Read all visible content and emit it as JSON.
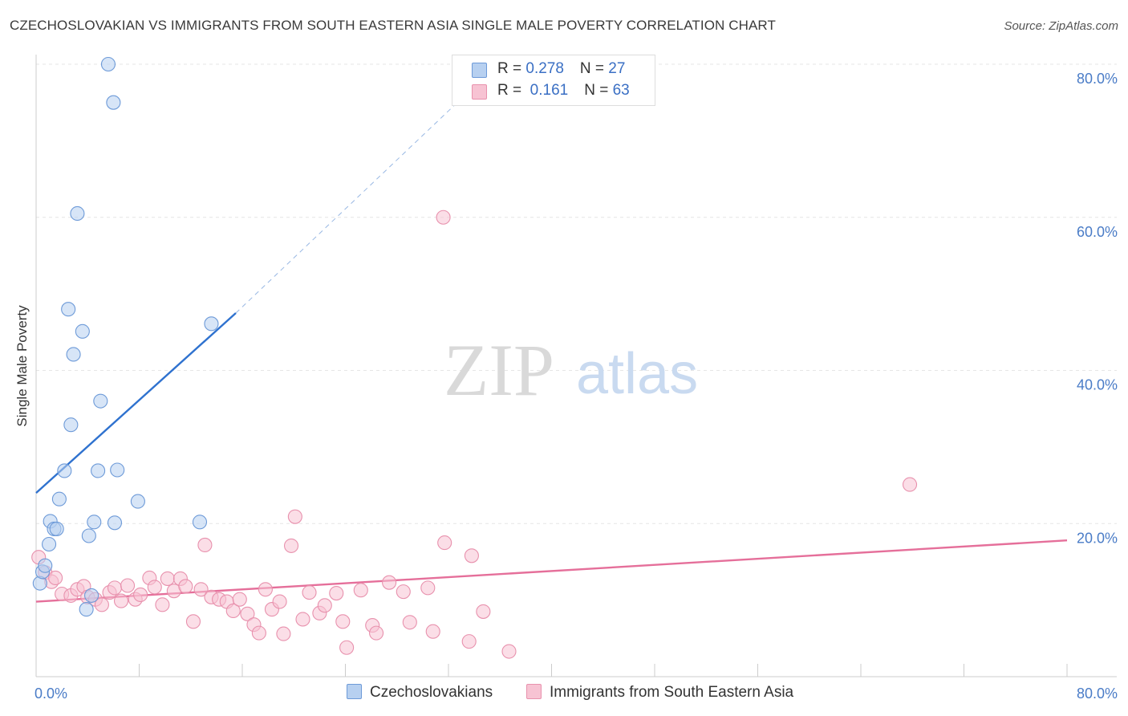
{
  "title": "CZECHOSLOVAKIAN VS IMMIGRANTS FROM SOUTH EASTERN ASIA SINGLE MALE POVERTY CORRELATION CHART",
  "source": "Source: ZipAtlas.com",
  "watermark": {
    "zip": "ZIP",
    "atlas": "atlas"
  },
  "legend_top": [
    {
      "r_label": "R = ",
      "r_value": "0.278",
      "n_label": "N = ",
      "n_value": "27"
    },
    {
      "r_label": "R = ",
      "r_value": " 0.161",
      "n_label": "N = ",
      "n_value": "63"
    }
  ],
  "colors": {
    "blue_fill": "#b7d0f0",
    "blue_stroke": "#6d9ad8",
    "blue_line": "#2f72cf",
    "pink_fill": "#f7c3d3",
    "pink_stroke": "#e891ad",
    "pink_line": "#e56f9a",
    "grid": "#e6e6e6",
    "axis_text": "#4a7cc7"
  },
  "chart_data": {
    "type": "scatter",
    "title": "CZECHOSLOVAKIAN VS IMMIGRANTS FROM SOUTH EASTERN ASIA SINGLE MALE POVERTY CORRELATION CHART",
    "xlabel": "",
    "ylabel": "Single Male Poverty",
    "xlim": [
      0,
      80
    ],
    "ylim": [
      0,
      80
    ],
    "x_tick_labels": [
      "0.0%",
      "80.0%"
    ],
    "y_tick_labels": [
      "20.0%",
      "40.0%",
      "60.0%",
      "80.0%"
    ],
    "y_ticks": [
      20,
      40,
      60,
      80
    ],
    "legend_position": "top-center",
    "series": [
      {
        "name": "Czechoslovakians",
        "r": 0.278,
        "n": 27,
        "points": [
          [
            0.3,
            12.2
          ],
          [
            0.5,
            13.7
          ],
          [
            0.7,
            14.5
          ],
          [
            1.0,
            17.3
          ],
          [
            1.1,
            20.3
          ],
          [
            1.4,
            19.3
          ],
          [
            1.6,
            19.3
          ],
          [
            1.8,
            23.2
          ],
          [
            2.2,
            26.9
          ],
          [
            2.7,
            32.9
          ],
          [
            2.5,
            48.0
          ],
          [
            2.9,
            42.1
          ],
          [
            3.2,
            60.5
          ],
          [
            3.6,
            45.1
          ],
          [
            3.9,
            8.8
          ],
          [
            4.1,
            18.4
          ],
          [
            4.3,
            10.6
          ],
          [
            4.5,
            20.2
          ],
          [
            4.8,
            26.9
          ],
          [
            5.0,
            36.0
          ],
          [
            5.6,
            80.0
          ],
          [
            6.0,
            75.0
          ],
          [
            6.1,
            20.1
          ],
          [
            6.3,
            27.0
          ],
          [
            7.9,
            22.9
          ],
          [
            12.7,
            20.2
          ],
          [
            13.6,
            46.1
          ]
        ],
        "trend": {
          "x": [
            0.0,
            15.5
          ],
          "y": [
            24.0,
            47.5
          ],
          "dash_to": [
            33.0,
            75.5
          ]
        }
      },
      {
        "name": "Immigrants from South Eastern Asia",
        "r": 0.161,
        "n": 63,
        "points": [
          [
            0.2,
            15.6
          ],
          [
            0.7,
            13.6
          ],
          [
            1.2,
            12.4
          ],
          [
            1.5,
            12.9
          ],
          [
            2.0,
            10.8
          ],
          [
            2.7,
            10.6
          ],
          [
            3.2,
            11.4
          ],
          [
            3.7,
            11.8
          ],
          [
            4.0,
            10.4
          ],
          [
            4.6,
            10.1
          ],
          [
            5.1,
            9.4
          ],
          [
            5.7,
            11.0
          ],
          [
            6.1,
            11.6
          ],
          [
            6.6,
            9.9
          ],
          [
            7.1,
            11.9
          ],
          [
            7.7,
            10.1
          ],
          [
            8.1,
            10.7
          ],
          [
            8.8,
            12.9
          ],
          [
            9.2,
            11.7
          ],
          [
            9.8,
            9.4
          ],
          [
            10.2,
            12.8
          ],
          [
            10.7,
            11.2
          ],
          [
            11.2,
            12.8
          ],
          [
            11.6,
            11.8
          ],
          [
            12.2,
            7.2
          ],
          [
            12.8,
            11.4
          ],
          [
            13.1,
            17.2
          ],
          [
            13.6,
            10.4
          ],
          [
            14.2,
            10.1
          ],
          [
            14.8,
            9.8
          ],
          [
            15.3,
            8.6
          ],
          [
            15.8,
            10.1
          ],
          [
            16.4,
            8.2
          ],
          [
            16.9,
            6.8
          ],
          [
            17.3,
            5.7
          ],
          [
            17.8,
            11.4
          ],
          [
            18.3,
            8.8
          ],
          [
            18.9,
            9.8
          ],
          [
            19.2,
            5.6
          ],
          [
            19.8,
            17.1
          ],
          [
            20.1,
            20.9
          ],
          [
            20.7,
            7.5
          ],
          [
            21.2,
            11.0
          ],
          [
            22.0,
            8.3
          ],
          [
            22.4,
            9.3
          ],
          [
            23.3,
            10.9
          ],
          [
            23.8,
            7.2
          ],
          [
            24.1,
            3.8
          ],
          [
            25.2,
            11.3
          ],
          [
            26.1,
            6.7
          ],
          [
            26.4,
            5.7
          ],
          [
            27.4,
            12.3
          ],
          [
            28.5,
            11.1
          ],
          [
            29.0,
            7.1
          ],
          [
            30.4,
            11.6
          ],
          [
            30.8,
            5.9
          ],
          [
            31.7,
            17.5
          ],
          [
            31.6,
            60.0
          ],
          [
            33.6,
            4.6
          ],
          [
            33.8,
            15.8
          ],
          [
            34.7,
            8.5
          ],
          [
            36.7,
            3.3
          ],
          [
            67.8,
            25.1
          ]
        ],
        "trend": {
          "x": [
            0.0,
            80.0
          ],
          "y": [
            9.8,
            17.8
          ]
        }
      }
    ]
  }
}
